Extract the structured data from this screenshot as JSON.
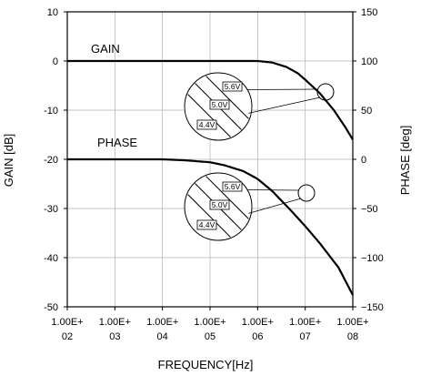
{
  "chart_data": {
    "type": "line",
    "xlabel": "FREQUENCY[Hz]",
    "ylabel_left": "GAIN [dB]",
    "ylabel_right": "PHASE [deg]",
    "x_scale": "log",
    "xlim": [
      100,
      100000000
    ],
    "ylim_left": [
      -50,
      10
    ],
    "ylim_right": [
      -150,
      150
    ],
    "x_ticks": [
      {
        "top": "1.00E+",
        "bottom": "02"
      },
      {
        "top": "1.00E+",
        "bottom": "03"
      },
      {
        "top": "1.00E+",
        "bottom": "04"
      },
      {
        "top": "1.00E+",
        "bottom": "05"
      },
      {
        "top": "1.00E+",
        "bottom": "06"
      },
      {
        "top": "1.00E+",
        "bottom": "07"
      },
      {
        "top": "1.00E+",
        "bottom": "08"
      }
    ],
    "y_ticks_left": [
      "10",
      "0",
      "-10",
      "-20",
      "-30",
      "-40",
      "-50"
    ],
    "y_ticks_left_values": [
      10,
      0,
      -10,
      -20,
      -30,
      -40,
      -50
    ],
    "y_ticks_right": [
      "150",
      "100",
      "50",
      "0",
      "−50",
      "−100",
      "−150"
    ],
    "y_ticks_right_values": [
      150,
      100,
      50,
      0,
      -50,
      -100,
      -150
    ],
    "grid": true,
    "series": [
      {
        "name": "GAIN",
        "axis": "left",
        "x": [
          100,
          1000,
          10000,
          100000,
          1000000,
          2000000,
          4000000,
          7000000,
          10000000,
          20000000,
          40000000,
          70000000,
          100000000
        ],
        "values": [
          0,
          0,
          0,
          0,
          0,
          -0.3,
          -1.2,
          -2.5,
          -3.8,
          -6.5,
          -10,
          -13.5,
          -16
        ]
      },
      {
        "name": "PHASE",
        "axis": "right",
        "x": [
          100,
          1000,
          10000,
          30000,
          100000,
          200000,
          500000,
          1000000,
          2000000,
          5000000,
          10000000,
          20000000,
          50000000,
          100000000
        ],
        "values": [
          0,
          0,
          0,
          -1,
          -3,
          -6,
          -12,
          -20,
          -32,
          -52,
          -68,
          -85,
          -110,
          -138
        ]
      }
    ],
    "annotations": {
      "gain_inset": [
        "5.6V",
        "5.0V",
        "4.4V"
      ],
      "phase_inset": [
        "5.6V",
        "5.0V",
        "4.4V"
      ]
    }
  }
}
